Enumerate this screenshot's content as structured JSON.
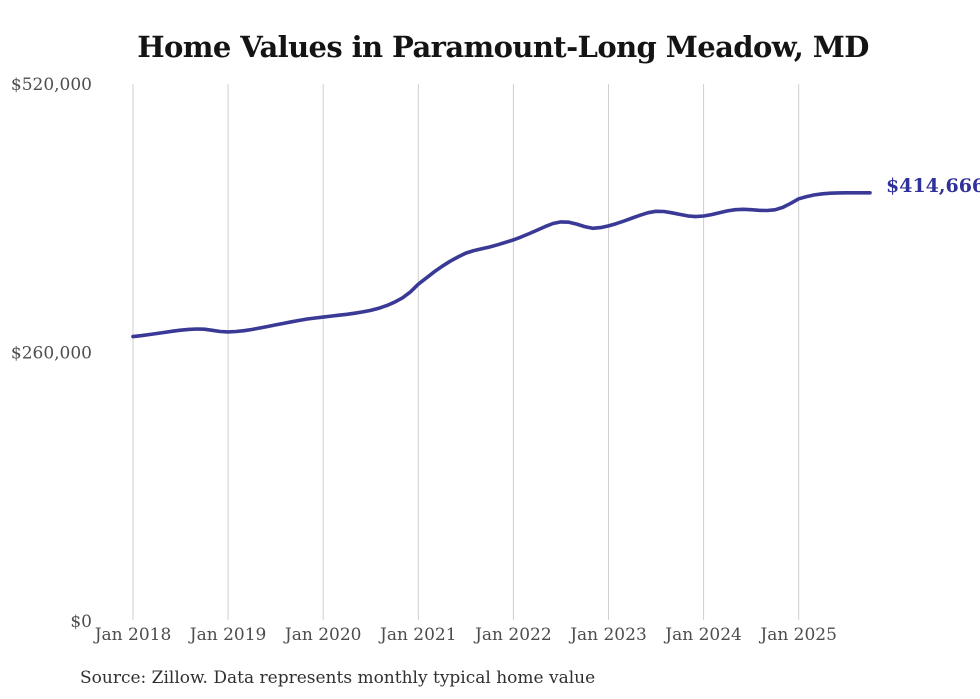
{
  "title": "Home Values in Paramount-Long Meadow, MD",
  "end_label": "$414,666",
  "source_note": "Source: Zillow. Data represents monthly typical home value",
  "colors": {
    "line": "#3a3a96",
    "end_label": "#31319b",
    "grid": "#cfcfcf",
    "axis_text": "#4d4d4d",
    "title_text": "#141414",
    "source_text": "#303030",
    "background": "#ffffff"
  },
  "chart_data": {
    "type": "line",
    "title": "Home Values in Paramount-Long Meadow, MD",
    "xlabel": "",
    "ylabel": "",
    "ylim": [
      0,
      520000
    ],
    "grid": "vertical-only",
    "legend": "none",
    "x_start": "2018-01",
    "x_freq": "monthly",
    "x_tick_labels": [
      "Jan 2018",
      "Jan 2019",
      "Jan 2020",
      "Jan 2021",
      "Jan 2022",
      "Jan 2023",
      "Jan 2024",
      "Jan 2025"
    ],
    "x_tick_month_interval": 12,
    "y_ticks": [
      {
        "value": 520000,
        "label": "$520,000"
      },
      {
        "value": 260000,
        "label": "$260,000"
      },
      {
        "value": 0,
        "label": "$0"
      }
    ],
    "final_value": 414666,
    "final_value_label": "$414,666",
    "series": [
      {
        "name": "Typical home value",
        "values": [
          275400,
          276300,
          277300,
          278400,
          279500,
          280600,
          281600,
          282400,
          282800,
          282600,
          281500,
          280300,
          279900,
          280300,
          281100,
          282300,
          283700,
          285200,
          286700,
          288200,
          289700,
          291100,
          292400,
          293400,
          294300,
          295200,
          296100,
          297000,
          298100,
          299300,
          300800,
          302800,
          305400,
          308700,
          312900,
          318700,
          326100,
          332000,
          338000,
          343500,
          348300,
          352500,
          356300,
          358700,
          360400,
          362200,
          364300,
          366600,
          369000,
          371900,
          375100,
          378500,
          381900,
          384900,
          386500,
          386200,
          384300,
          381900,
          380300,
          380900,
          382600,
          384800,
          387400,
          390200,
          393000,
          395400,
          396700,
          396500,
          395300,
          393700,
          392300,
          391600,
          392200,
          393500,
          395300,
          397100,
          398300,
          398700,
          398300,
          397700,
          397500,
          398200,
          400500,
          404500,
          408800,
          411000,
          412600,
          413700,
          414300,
          414550,
          414640,
          414660,
          414665,
          414666
        ]
      }
    ]
  }
}
